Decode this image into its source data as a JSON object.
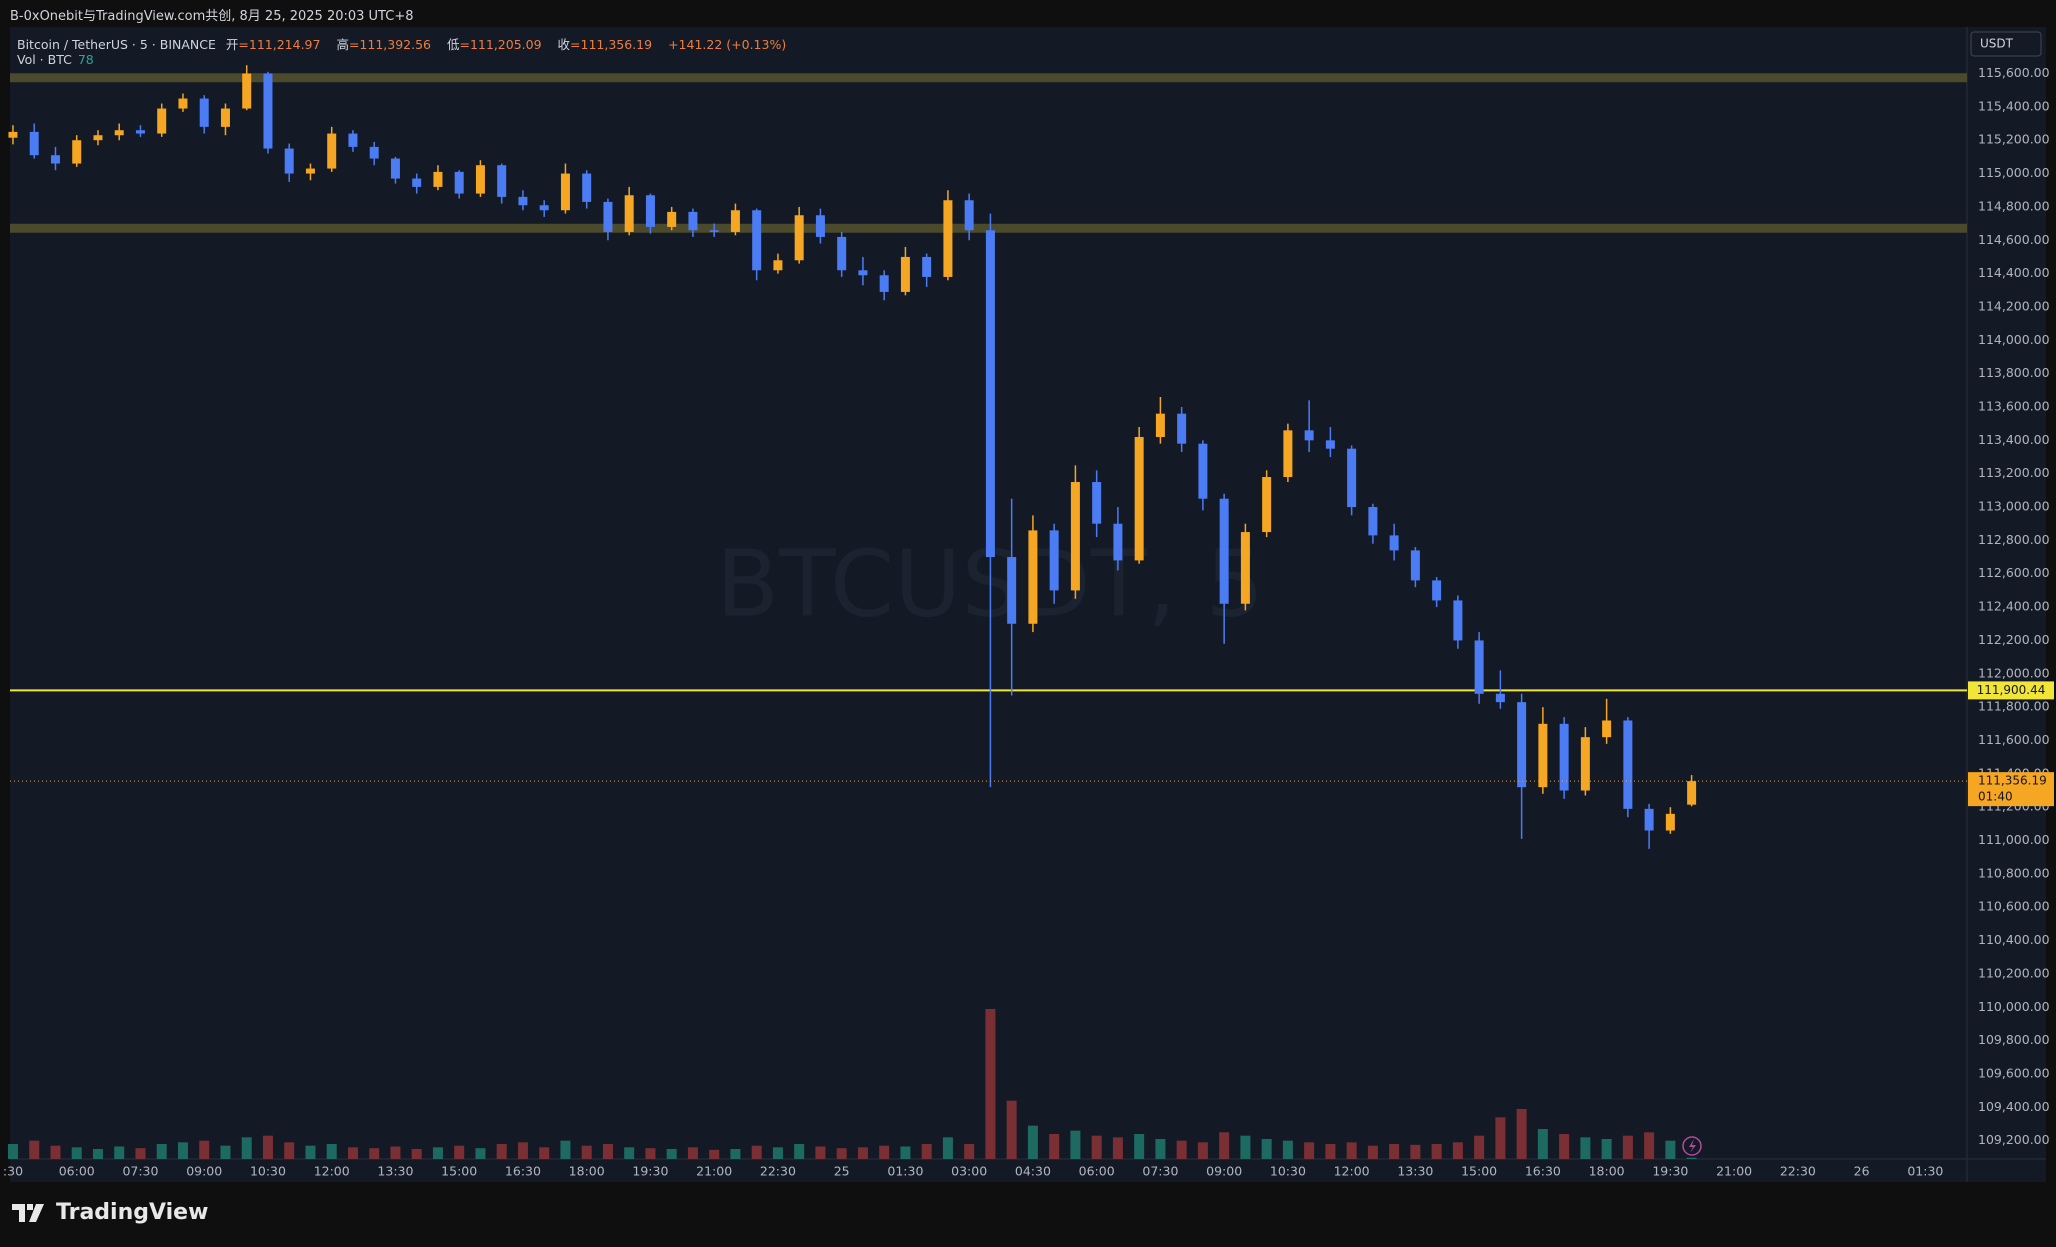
{
  "header": {
    "title": "B-0xOnebit与TradingView.com共创, 8月 25, 2025 20:03 UTC+8"
  },
  "legend": {
    "symbol": "Bitcoin / TetherUS · 5 · BINANCE",
    "ohlc": [
      {
        "label": "开",
        "value": "=111,214.97"
      },
      {
        "label": "高",
        "value": "=111,392.56"
      },
      {
        "label": "低",
        "value": "=111,205.09"
      },
      {
        "label": "收",
        "value": "=111,356.19"
      }
    ],
    "change": "+141.22 (+0.13%)",
    "volume_label": "Vol · BTC",
    "volume_value": 78
  },
  "watermark": "BTCUSDT, 5",
  "currency": "USDT",
  "footer": {
    "brand": "TradingView"
  },
  "chart_data": {
    "type": "candlestick",
    "x": [
      4.5,
      5,
      5.5,
      6,
      6.5,
      7,
      7.5,
      8,
      8.5,
      9,
      9.5,
      10,
      10.5,
      11,
      11.5,
      12,
      12.5,
      13,
      13.5,
      14,
      14.5,
      15,
      15.5,
      16,
      16.5,
      17,
      17.5,
      18,
      18.5,
      19,
      19.5,
      20,
      20.5,
      21,
      21.5,
      22,
      22.5,
      23,
      23.5,
      24,
      24.5,
      25,
      25.5,
      26,
      26.5,
      27,
      27.5,
      28,
      28.5,
      29,
      29.5,
      30,
      30.5,
      31,
      31.5,
      32,
      32.5,
      33,
      33.5,
      34,
      34.5,
      35,
      35.5,
      36,
      36.5,
      37,
      37.5,
      38,
      38.5,
      39,
      39.5,
      40,
      40.5,
      41,
      41.5,
      42,
      42.5,
      43,
      43.5,
      44
    ],
    "open": [
      115215,
      115250,
      115110,
      115060,
      115200,
      115230,
      115260,
      115240,
      115390,
      115450,
      115280,
      115390,
      115600,
      115150,
      115000,
      115030,
      115240,
      115160,
      115090,
      114970,
      114920,
      115010,
      114880,
      115050,
      114860,
      114810,
      114780,
      115000,
      114830,
      114650,
      114870,
      114680,
      114770,
      114660,
      114650,
      114780,
      114420,
      114480,
      114750,
      114620,
      114420,
      114390,
      114290,
      114500,
      114380,
      114840,
      114660,
      112700,
      112300,
      112860,
      112500,
      113150,
      112900,
      112680,
      113420,
      113560,
      113380,
      113050,
      112420,
      112850,
      113180,
      113460,
      113400,
      113350,
      113000,
      112830,
      112740,
      112560,
      112440,
      112200,
      111880,
      111830,
      111320,
      111700,
      111300,
      111620,
      111720,
      111190,
      111060,
      111214.97
    ],
    "high": [
      115290,
      115300,
      115160,
      115230,
      115260,
      115300,
      115290,
      115420,
      115480,
      115470,
      115420,
      115650,
      115610,
      115180,
      115060,
      115280,
      115260,
      115190,
      115100,
      115000,
      115050,
      115020,
      115080,
      115060,
      114900,
      114840,
      115060,
      115020,
      114850,
      114920,
      114880,
      114800,
      114790,
      114700,
      114820,
      114790,
      114520,
      114800,
      114790,
      114650,
      114500,
      114420,
      114560,
      114520,
      114900,
      114880,
      114760,
      113050,
      112950,
      112900,
      113250,
      113220,
      113000,
      113480,
      113660,
      113600,
      113400,
      113080,
      112900,
      113220,
      113500,
      113640,
      113480,
      113370,
      113020,
      112900,
      112760,
      112580,
      112470,
      112250,
      112020,
      111880,
      111800,
      111740,
      111680,
      111850,
      111740,
      111220,
      111200,
      111392.56
    ],
    "low": [
      115175,
      115090,
      115020,
      115040,
      115170,
      115200,
      115220,
      115220,
      115370,
      115240,
      115230,
      115380,
      115120,
      114950,
      114960,
      115010,
      115130,
      115050,
      114940,
      114880,
      114900,
      114850,
      114860,
      114820,
      114780,
      114740,
      114760,
      114790,
      114600,
      114630,
      114640,
      114660,
      114620,
      114620,
      114630,
      114360,
      114400,
      114460,
      114580,
      114380,
      114330,
      114240,
      114270,
      114320,
      114360,
      114600,
      111320,
      111870,
      112250,
      112420,
      112450,
      112820,
      112620,
      112660,
      113380,
      113330,
      112980,
      112180,
      112380,
      112820,
      113150,
      113330,
      113300,
      112950,
      112780,
      112680,
      112520,
      112400,
      112150,
      111820,
      111790,
      111010,
      111280,
      111250,
      111270,
      111580,
      111140,
      110950,
      111040,
      111205.09
    ],
    "close": [
      115250,
      115110,
      115060,
      115200,
      115230,
      115260,
      115240,
      115390,
      115450,
      115280,
      115390,
      115600,
      115150,
      115000,
      115030,
      115240,
      115160,
      115090,
      114970,
      114920,
      115010,
      114880,
      115050,
      114860,
      114810,
      114780,
      115000,
      114830,
      114650,
      114870,
      114680,
      114770,
      114660,
      114650,
      114780,
      114420,
      114480,
      114750,
      114620,
      114420,
      114390,
      114290,
      114500,
      114380,
      114840,
      114660,
      112700,
      112300,
      112860,
      112500,
      113150,
      112900,
      112680,
      113420,
      113560,
      113380,
      113050,
      112420,
      112850,
      113180,
      113460,
      113400,
      113350,
      113000,
      112830,
      112740,
      112560,
      112440,
      112200,
      111880,
      111830,
      111320,
      111700,
      111300,
      111620,
      111720,
      111190,
      111060,
      111160,
      111356.19
    ],
    "volume": [
      900,
      1100,
      800,
      700,
      600,
      750,
      650,
      900,
      1000,
      1100,
      800,
      1300,
      1400,
      1000,
      800,
      900,
      700,
      650,
      750,
      600,
      700,
      800,
      650,
      900,
      1000,
      700,
      1100,
      800,
      900,
      700,
      650,
      600,
      700,
      550,
      600,
      800,
      700,
      900,
      750,
      650,
      700,
      800,
      750,
      900,
      1300,
      900,
      9000,
      3500,
      2000,
      1500,
      1700,
      1400,
      1300,
      1500,
      1200,
      1100,
      1000,
      1600,
      1400,
      1200,
      1100,
      1000,
      900,
      1000,
      800,
      900,
      850,
      900,
      1000,
      1400,
      2500,
      3000,
      1800,
      1500,
      1300,
      1200,
      1400,
      1600,
      1100,
      78
    ],
    "up_color": "#f5a623",
    "down_color": "#4c7cf3",
    "volume_up_color": "#1d6a62",
    "volume_down_color": "#7a2f34",
    "xlim": [
      4.43,
      50.48
    ],
    "ylim": [
      109090,
      115867
    ],
    "volume_lim": [
      0,
      15000
    ],
    "grid": false,
    "xticks": [
      {
        "value": 4.5,
        "label": ":30"
      },
      {
        "value": 6,
        "label": "06:00"
      },
      {
        "value": 7.5,
        "label": "07:30"
      },
      {
        "value": 9,
        "label": "09:00"
      },
      {
        "value": 10.5,
        "label": "10:30"
      },
      {
        "value": 12,
        "label": "12:00"
      },
      {
        "value": 13.5,
        "label": "13:30"
      },
      {
        "value": 15,
        "label": "15:00"
      },
      {
        "value": 16.5,
        "label": "16:30"
      },
      {
        "value": 18,
        "label": "18:00"
      },
      {
        "value": 19.5,
        "label": "19:30"
      },
      {
        "value": 21,
        "label": "21:00"
      },
      {
        "value": 22.5,
        "label": "22:30"
      },
      {
        "value": 24,
        "label": "25"
      },
      {
        "value": 25.5,
        "label": "01:30"
      },
      {
        "value": 27,
        "label": "03:00"
      },
      {
        "value": 28.5,
        "label": "04:30"
      },
      {
        "value": 30,
        "label": "06:00"
      },
      {
        "value": 31.5,
        "label": "07:30"
      },
      {
        "value": 33,
        "label": "09:00"
      },
      {
        "value": 34.5,
        "label": "10:30"
      },
      {
        "value": 36,
        "label": "12:00"
      },
      {
        "value": 37.5,
        "label": "13:30"
      },
      {
        "value": 39,
        "label": "15:00"
      },
      {
        "value": 40.5,
        "label": "16:30"
      },
      {
        "value": 42,
        "label": "18:00"
      },
      {
        "value": 43.5,
        "label": "19:30"
      },
      {
        "value": 45,
        "label": "21:00"
      },
      {
        "value": 46.5,
        "label": "22:30"
      },
      {
        "value": 48,
        "label": "26"
      },
      {
        "value": 49.5,
        "label": "01:30"
      }
    ],
    "yticks": [
      {
        "value": 109200,
        "label": "109,200.00"
      },
      {
        "value": 109400,
        "label": "109,400.00"
      },
      {
        "value": 109600,
        "label": "109,600.00"
      },
      {
        "value": 109800,
        "label": "109,800.00"
      },
      {
        "value": 110000,
        "label": "110,000.00"
      },
      {
        "value": 110200,
        "label": "110,200.00"
      },
      {
        "value": 110400,
        "label": "110,400.00"
      },
      {
        "value": 110600,
        "label": "110,600.00"
      },
      {
        "value": 110800,
        "label": "110,800.00"
      },
      {
        "value": 111000,
        "label": "111,000.00"
      },
      {
        "value": 111200,
        "label": "111,200.00"
      },
      {
        "value": 111400,
        "label": "111,400.00"
      },
      {
        "value": 111600,
        "label": "111,600.00"
      },
      {
        "value": 111800,
        "label": "111,800.00"
      },
      {
        "value": 112000,
        "label": "112,000.00"
      },
      {
        "value": 112200,
        "label": "112,200.00"
      },
      {
        "value": 112400,
        "label": "112,400.00"
      },
      {
        "value": 112600,
        "label": "112,600.00"
      },
      {
        "value": 112800,
        "label": "112,800.00"
      },
      {
        "value": 113000,
        "label": "113,000.00"
      },
      {
        "value": 113200,
        "label": "113,200.00"
      },
      {
        "value": 113400,
        "label": "113,400.00"
      },
      {
        "value": 113600,
        "label": "113,600.00"
      },
      {
        "value": 113800,
        "label": "113,800.00"
      },
      {
        "value": 114000,
        "label": "114,000.00"
      },
      {
        "value": 114200,
        "label": "114,200.00"
      },
      {
        "value": 114400,
        "label": "114,400.00"
      },
      {
        "value": 114600,
        "label": "114,600.00"
      },
      {
        "value": 114800,
        "label": "114,800.00"
      },
      {
        "value": 115000,
        "label": "115,000.00"
      },
      {
        "value": 115200,
        "label": "115,200.00"
      },
      {
        "value": 115400,
        "label": "115,400.00"
      },
      {
        "value": 115600,
        "label": "115,600.00"
      }
    ],
    "levels": [
      {
        "value": 115575,
        "color": "#4b4a2c"
      },
      {
        "value": 114672,
        "color": "#4b4a2c"
      },
      {
        "value": 111900.44,
        "label": "111,900.44",
        "color": "#f2e53a"
      }
    ],
    "last_price": {
      "value": 111356.19,
      "label": "111,356.19",
      "countdown": "01:40",
      "color": "#f5a623"
    }
  }
}
